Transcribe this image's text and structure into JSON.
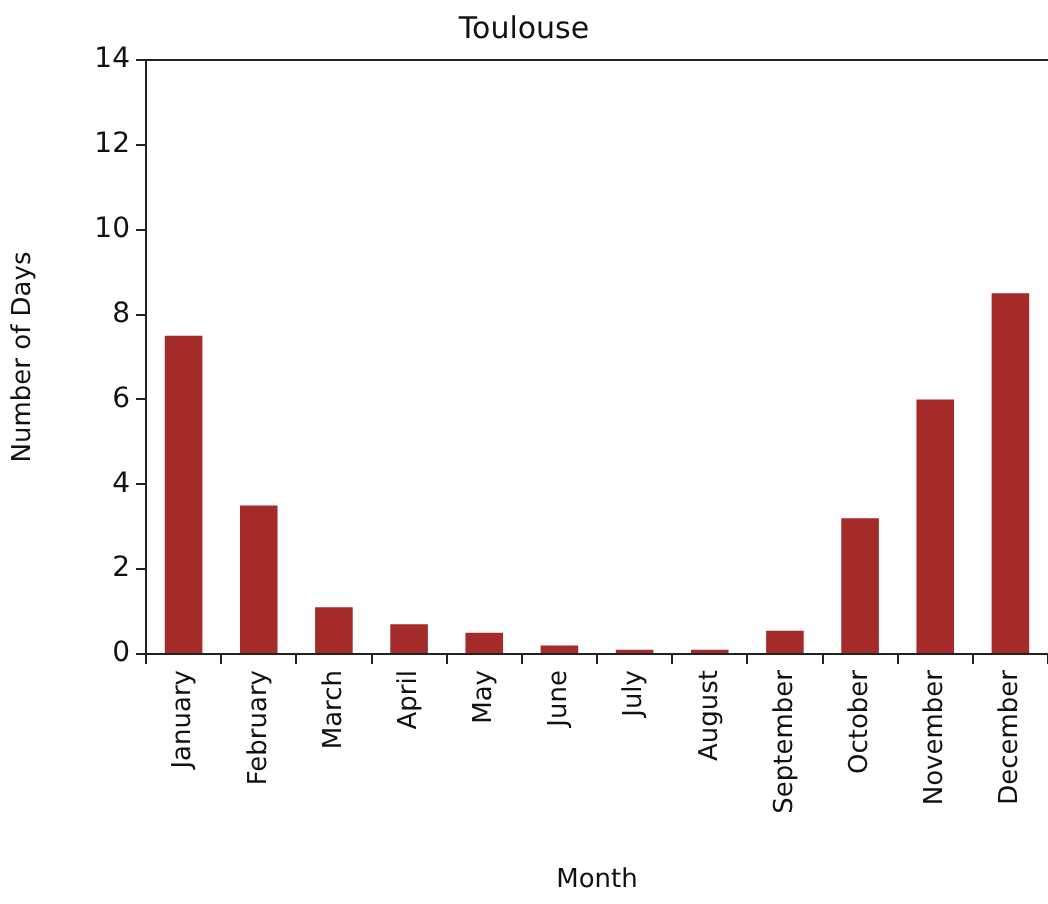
{
  "chart_data": {
    "type": "bar",
    "title": "Toulouse",
    "xlabel": "Month",
    "ylabel": "Number of Days",
    "categories": [
      "January",
      "February",
      "March",
      "April",
      "May",
      "June",
      "July",
      "August",
      "September",
      "October",
      "November",
      "December"
    ],
    "values": [
      7.5,
      3.5,
      1.1,
      0.7,
      0.5,
      0.2,
      0.1,
      0.1,
      0.55,
      3.2,
      6.0,
      8.5
    ],
    "color": "#a52a2a",
    "ylim": [
      0,
      14
    ],
    "yticks": [
      0,
      2,
      4,
      6,
      8,
      10,
      12,
      14
    ],
    "grid": false,
    "legend": false
  }
}
